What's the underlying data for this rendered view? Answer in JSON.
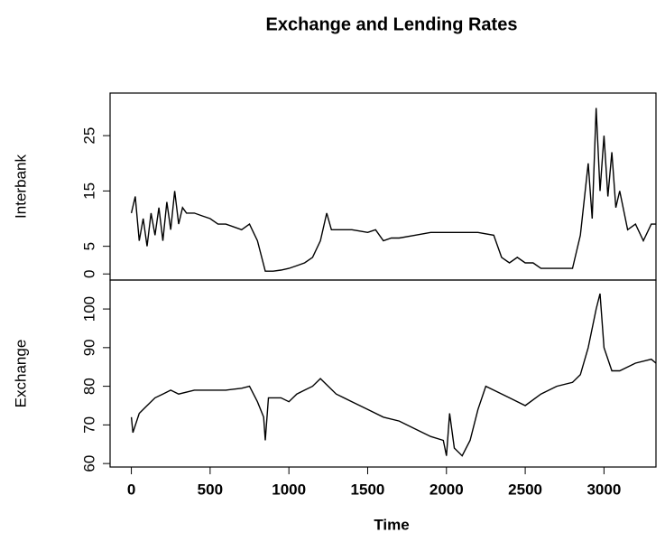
{
  "chart_data": [
    {
      "type": "line",
      "title": "Exchange and Lending Rates",
      "ylabel": "Interbank",
      "color": "#000000",
      "x": [
        0,
        25,
        50,
        75,
        100,
        125,
        150,
        175,
        200,
        225,
        250,
        275,
        300,
        325,
        350,
        400,
        450,
        500,
        550,
        600,
        650,
        700,
        750,
        800,
        850,
        900,
        950,
        1000,
        1050,
        1100,
        1150,
        1200,
        1240,
        1270,
        1300,
        1400,
        1500,
        1550,
        1600,
        1650,
        1700,
        1800,
        1900,
        2000,
        2100,
        2200,
        2300,
        2350,
        2400,
        2450,
        2500,
        2550,
        2600,
        2700,
        2800,
        2850,
        2900,
        2925,
        2950,
        2975,
        3000,
        3025,
        3050,
        3075,
        3100,
        3150,
        3200,
        3250,
        3300,
        3330
      ],
      "values": [
        11,
        14,
        6,
        10,
        5,
        11,
        7,
        12,
        6,
        13,
        8,
        15,
        9,
        12,
        11,
        11,
        10.5,
        10,
        9,
        9,
        8.5,
        8,
        9,
        6,
        0.5,
        0.5,
        0.7,
        1,
        1.5,
        2,
        3,
        6,
        11,
        8,
        8,
        8,
        7.5,
        8,
        6,
        6.5,
        6.5,
        7,
        7.5,
        7.5,
        7.5,
        7.5,
        7,
        3,
        2,
        3,
        2,
        2,
        1,
        1,
        1,
        7,
        20,
        10,
        30,
        15,
        25,
        14,
        22,
        12,
        15,
        8,
        9,
        6,
        9,
        9
      ],
      "xlim": [
        -135,
        3330
      ],
      "ylim": [
        -1.1,
        32.7
      ],
      "yticks": [
        0,
        5,
        15,
        25
      ]
    },
    {
      "type": "line",
      "ylabel": "Exchange",
      "xlabel": "Time",
      "color": "#000000",
      "x": [
        0,
        10,
        50,
        100,
        150,
        200,
        250,
        300,
        400,
        500,
        600,
        700,
        750,
        800,
        840,
        850,
        870,
        950,
        1000,
        1050,
        1100,
        1150,
        1200,
        1250,
        1300,
        1400,
        1500,
        1600,
        1700,
        1800,
        1900,
        1980,
        2000,
        2020,
        2050,
        2100,
        2150,
        2200,
        2250,
        2300,
        2400,
        2500,
        2600,
        2700,
        2800,
        2850,
        2900,
        2950,
        2975,
        3000,
        3050,
        3100,
        3200,
        3300,
        3330
      ],
      "values": [
        72,
        68,
        73,
        75,
        77,
        78,
        79,
        78,
        79,
        79,
        79,
        79.5,
        80,
        76,
        72,
        66,
        77,
        77,
        76,
        78,
        79,
        80,
        82,
        80,
        78,
        76,
        74,
        72,
        71,
        69,
        67,
        66,
        62,
        73,
        64,
        62,
        66,
        74,
        80,
        79,
        77,
        75,
        78,
        80,
        81,
        83,
        90,
        100,
        104,
        90,
        84,
        84,
        86,
        87,
        86
      ],
      "xlim": [
        -135,
        3330
      ],
      "ylim": [
        59.1,
        107.5
      ],
      "yticks": [
        60,
        70,
        80,
        90,
        100
      ],
      "xticks": [
        0,
        500,
        1000,
        1500,
        2000,
        2500,
        3000
      ]
    }
  ]
}
